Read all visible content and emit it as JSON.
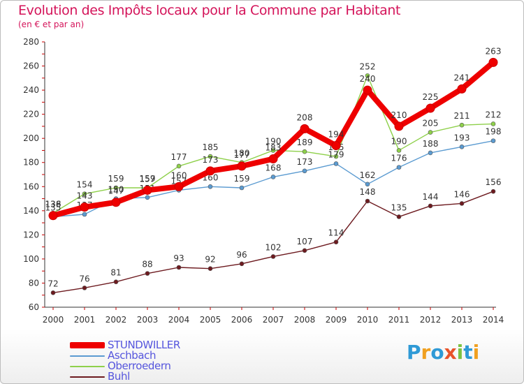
{
  "title": "Evolution des Impôts locaux pour la Commune par Habitant",
  "subtitle": "(en € et par an)",
  "logo": {
    "letters": [
      "P",
      "r",
      "o",
      "x",
      "i",
      "t",
      "i"
    ],
    "colors": [
      "#2f9ad6",
      "#f0a020",
      "#2f9ad6",
      "#e8532a",
      "#7cc242",
      "#2f9ad6",
      "#f0a020"
    ]
  },
  "chart_data": {
    "type": "line",
    "title": "Evolution des Impôts locaux pour la Commune par Habitant",
    "subtitle": "(en € et par an)",
    "xlabel": "",
    "ylabel": "",
    "ylim": [
      60,
      280
    ],
    "yticks": [
      "60",
      "80",
      "100",
      "120",
      "140",
      "160",
      "180",
      "200",
      "220",
      "240",
      "260",
      "280"
    ],
    "grid": false,
    "x": [
      "2000",
      "2001",
      "2002",
      "2003",
      "2004",
      "2005",
      "2006",
      "2007",
      "2008",
      "2009",
      "2010",
      "2011",
      "2012",
      "2013",
      "2014"
    ],
    "series": [
      {
        "name": "Buhl",
        "color": "#6d1a1f",
        "values": [
          72,
          76,
          81,
          88,
          93,
          92,
          96,
          102,
          107,
          114,
          148,
          135,
          144,
          146,
          156
        ],
        "labels": [
          "72",
          "76",
          "81",
          "88",
          "93",
          "92",
          "96",
          "102",
          "107",
          "114",
          "148",
          "135",
          "144",
          "146",
          "156"
        ]
      },
      {
        "name": "Oberroedern",
        "color": "#8ed04a",
        "values": [
          138,
          154,
          159,
          159,
          177,
          185,
          180,
          190,
          189,
          185,
          252,
          190,
          205,
          211,
          212
        ],
        "labels": [
          "138",
          "154",
          "159",
          "159",
          "177",
          "185",
          "180",
          "190",
          "189",
          "185",
          "252",
          "190",
          "205",
          "211",
          "212"
        ]
      },
      {
        "name": "Aschbach",
        "color": "#5b9bd1",
        "values": [
          135,
          137,
          150,
          151,
          157,
          160,
          159,
          168,
          173,
          179,
          162,
          176,
          188,
          193,
          198
        ],
        "labels": [
          "135",
          "137",
          "150",
          "151",
          "157",
          "160",
          "159",
          "168",
          "173",
          "179",
          "162",
          "176",
          "188",
          "193",
          "198"
        ]
      },
      {
        "name": "STUNDWILLER",
        "color": "#ee0000",
        "values": [
          136,
          143,
          147,
          157,
          160,
          173,
          177,
          183,
          208,
          194,
          240,
          210,
          225,
          241,
          263
        ],
        "labels": [
          "136",
          "143",
          "147",
          "157",
          "160",
          "173",
          "177",
          "183",
          "208",
          "194",
          "240",
          "210",
          "225",
          "241",
          "263"
        ]
      }
    ],
    "legend": {
      "position": "bottom-left",
      "items": [
        "STUNDWILLER",
        "Aschbach",
        "Oberroedern",
        "Buhl"
      ]
    }
  }
}
